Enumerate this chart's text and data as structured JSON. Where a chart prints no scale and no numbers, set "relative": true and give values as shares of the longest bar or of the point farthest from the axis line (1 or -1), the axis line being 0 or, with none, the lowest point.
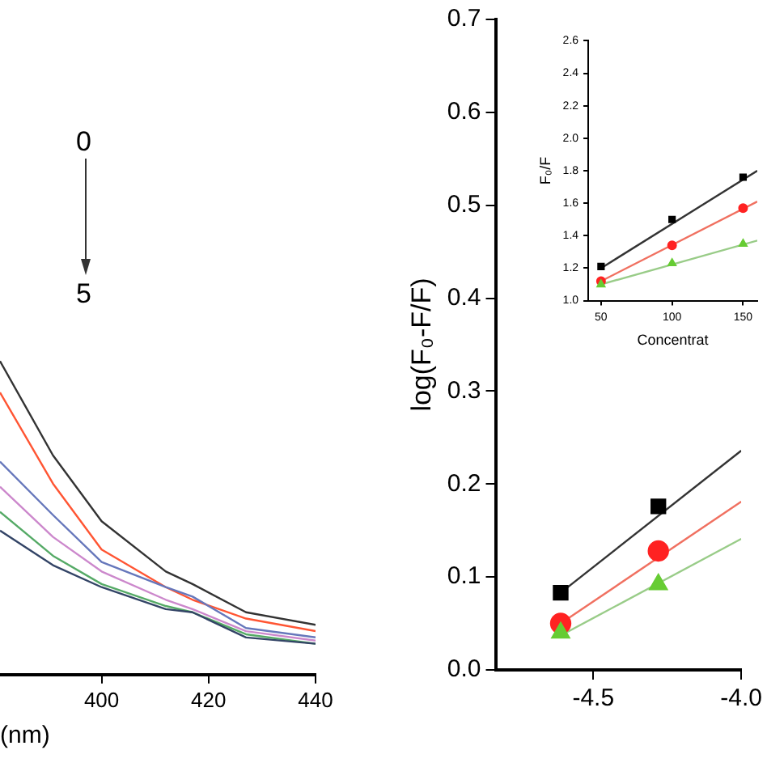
{
  "chart_data": [
    {
      "type": "line",
      "relative": true,
      "marker": "none",
      "xlabel": "(nm)",
      "xlim": [
        381,
        440
      ],
      "xticks": [
        400,
        420,
        440
      ],
      "annotations": [
        "0",
        "5"
      ],
      "x": [
        381,
        390.9,
        400,
        412,
        417,
        427,
        440
      ],
      "series": [
        {
          "color": "#333333",
          "values": [
            1,
            0.7,
            0.49,
            0.33,
            0.29,
            0.2,
            0.16
          ]
        },
        {
          "color": "#ff5533",
          "values": [
            0.9,
            0.61,
            0.4,
            0.28,
            0.24,
            0.18,
            0.14
          ]
        },
        {
          "color": "#6677bb",
          "values": [
            0.68,
            0.51,
            0.36,
            0.28,
            0.25,
            0.15,
            0.12
          ]
        },
        {
          "color": "#cc88cc",
          "values": [
            0.6,
            0.44,
            0.33,
            0.24,
            0.21,
            0.14,
            0.11
          ]
        },
        {
          "color": "#55aa66",
          "values": [
            0.52,
            0.38,
            0.29,
            0.22,
            0.2,
            0.13,
            0.1
          ]
        },
        {
          "color": "#334466",
          "values": [
            0.46,
            0.35,
            0.28,
            0.21,
            0.2,
            0.12,
            0.1
          ]
        }
      ]
    },
    {
      "type": "scatter",
      "ylabel": "log(F₀-F/F)",
      "xlim": [
        -4.83,
        -4.0
      ],
      "xticks": [
        -4.5,
        {
          "value": -4,
          "label": "-4.0"
        }
      ],
      "ylim": [
        0,
        0.7
      ],
      "yticks": [
        {
          "value": 0,
          "label": "0.0"
        },
        0.1,
        0.2,
        0.3,
        0.4,
        0.5,
        0.6,
        0.7
      ],
      "series": [
        {
          "color": "#000000",
          "marker": "square",
          "x": [
            -4.61,
            -4.28
          ],
          "values": [
            0.083,
            0.176
          ]
        },
        {
          "color": "#ff2222",
          "marker": "circle",
          "x": [
            -4.61,
            -4.28
          ],
          "values": [
            0.05,
            0.128
          ]
        },
        {
          "color": "#66cc33",
          "marker": "triangle",
          "x": [
            -4.61,
            -4.28
          ],
          "values": [
            0.04,
            0.092
          ]
        },
        {
          "type": "line",
          "marker": "none",
          "color": "#333333",
          "x": [
            -4.61,
            -4.0
          ],
          "values": [
            0.083,
            0.236
          ]
        },
        {
          "type": "line",
          "marker": "none",
          "color": "#f07060",
          "x": [
            -4.61,
            -4.0
          ],
          "values": [
            0.05,
            0.181
          ]
        },
        {
          "type": "line",
          "marker": "none",
          "color": "#99cc88",
          "x": [
            -4.61,
            -4.0
          ],
          "values": [
            0.037,
            0.141
          ]
        }
      ]
    },
    {
      "type": "scatter",
      "xlabel": "Concentrat",
      "ylabel": "F₀/F",
      "xlim": [
        41,
        160
      ],
      "xticks": [
        50,
        100,
        150
      ],
      "ylim": [
        1,
        2.6
      ],
      "yticks": [
        {
          "value": 1,
          "label": "1.0"
        },
        1.2,
        1.4,
        1.6,
        1.8,
        {
          "value": 2,
          "label": "2.0"
        },
        2.2,
        2.4,
        2.6
      ],
      "series": [
        {
          "color": "#000000",
          "marker": "square",
          "x": [
            50,
            100,
            150
          ],
          "values": [
            1.21,
            1.5,
            1.76
          ]
        },
        {
          "color": "#ff2222",
          "marker": "circle",
          "x": [
            50,
            100,
            150
          ],
          "values": [
            1.12,
            1.34,
            1.57
          ]
        },
        {
          "color": "#66cc33",
          "marker": "triangle",
          "x": [
            50,
            100,
            150
          ],
          "values": [
            1.1,
            1.23,
            1.35
          ]
        },
        {
          "type": "line",
          "marker": "none",
          "color": "#333333",
          "x": [
            50,
            160
          ],
          "values": [
            1.2,
            1.8
          ]
        },
        {
          "type": "line",
          "marker": "none",
          "color": "#f07060",
          "x": [
            50,
            160
          ],
          "values": [
            1.12,
            1.61
          ]
        },
        {
          "type": "line",
          "marker": "none",
          "color": "#99cc88",
          "x": [
            50,
            160
          ],
          "values": [
            1.1,
            1.37
          ]
        }
      ]
    }
  ]
}
